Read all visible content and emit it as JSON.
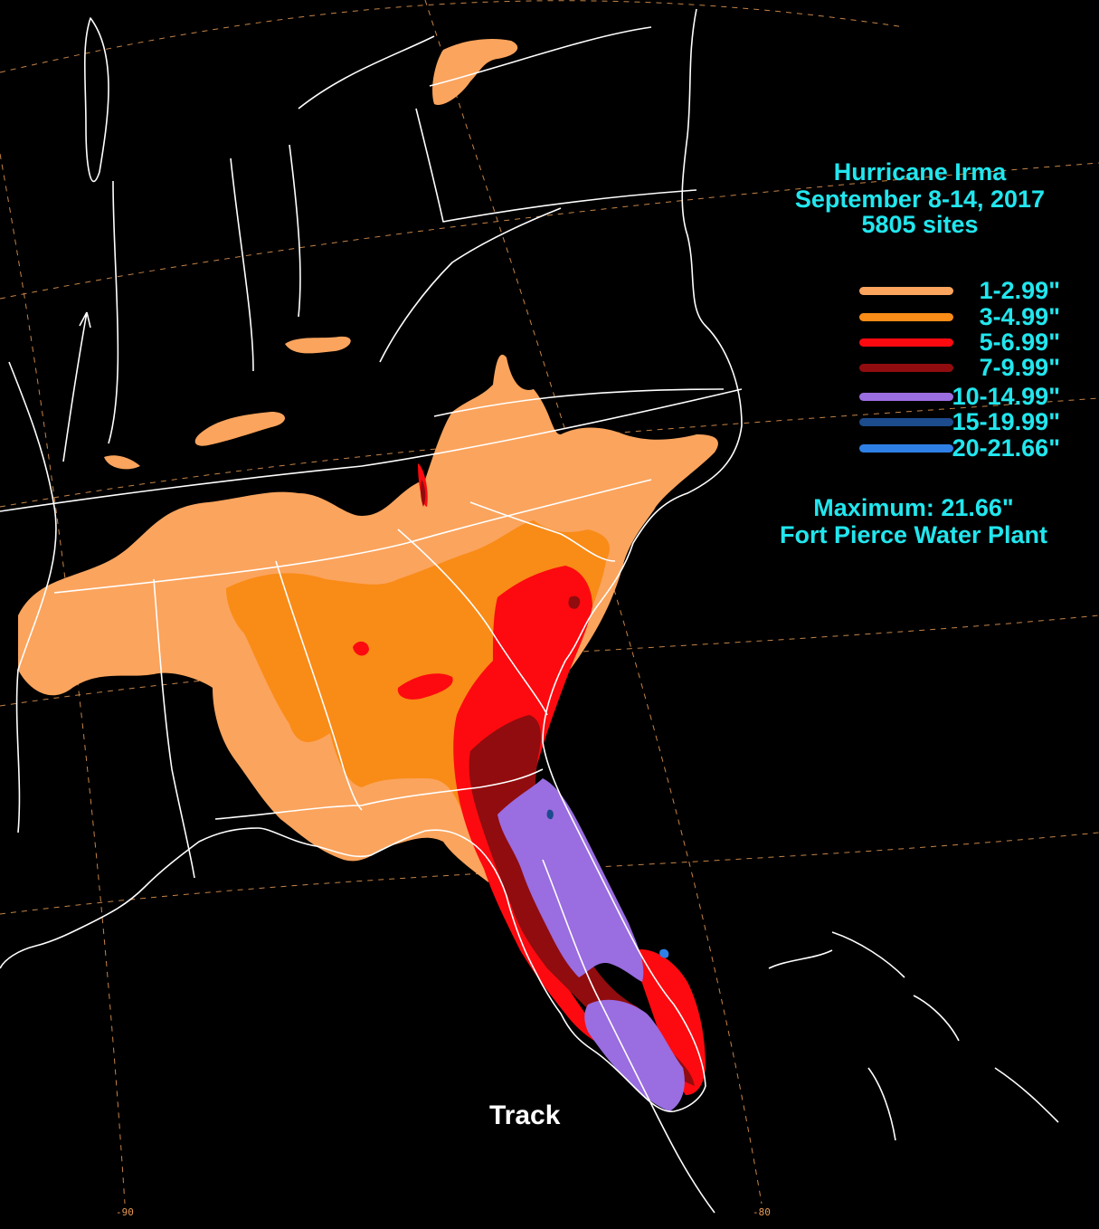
{
  "title": {
    "line1": "Hurricane Irma",
    "line2": "September 8-14, 2017",
    "line3": "5805 sites"
  },
  "legend": [
    {
      "label": "1-2.99\"",
      "color": "#fba45d"
    },
    {
      "label": "3-4.99\"",
      "color": "#f98b17"
    },
    {
      "label": "5-6.99\"",
      "color": "#fc0a0f"
    },
    {
      "label": "7-9.99\"",
      "color": "#910c0e"
    },
    {
      "label": "10-14.99\"",
      "color": "#9a6de1"
    },
    {
      "label": "15-19.99\"",
      "color": "#1c4b8e"
    },
    {
      "label": "20-21.66\"",
      "color": "#2f80e6"
    }
  ],
  "maximum": {
    "value_line": "Maximum: 21.66\"",
    "site": "Fort Pierce Water Plant"
  },
  "track_label": "Track",
  "longitude_labels": {
    "west": "-90",
    "east": "-80"
  },
  "colors": {
    "background": "#000000",
    "text": "#22e6ee",
    "boundaries": "#ffffff",
    "graticule": "#e79a53"
  }
}
